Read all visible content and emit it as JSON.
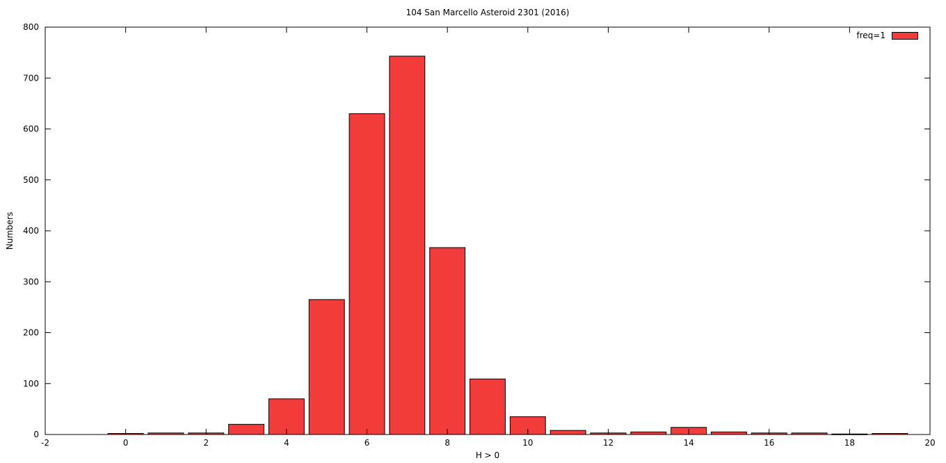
{
  "chart_data": {
    "type": "bar",
    "title": "104 San Marcello Asteroid 2301 (2016)",
    "xlabel": "H > 0",
    "ylabel": "Numbers",
    "xlim": [
      -2,
      20
    ],
    "ylim": [
      0,
      800
    ],
    "xtick_step": 2,
    "ytick_step": 100,
    "grid": false,
    "legend_position": "top-right",
    "legend_label": "freq=1",
    "bar_color": "#f23b3b",
    "bar_border_color": "#000000",
    "bar_width": 0.88,
    "x": [
      0,
      1,
      2,
      3,
      4,
      5,
      6,
      7,
      8,
      9,
      10,
      11,
      12,
      13,
      14,
      15,
      16,
      17,
      18,
      19
    ],
    "values": [
      2,
      3,
      3,
      20,
      70,
      265,
      630,
      743,
      367,
      109,
      35,
      8,
      3,
      5,
      14,
      5,
      3,
      3,
      1,
      2
    ]
  }
}
